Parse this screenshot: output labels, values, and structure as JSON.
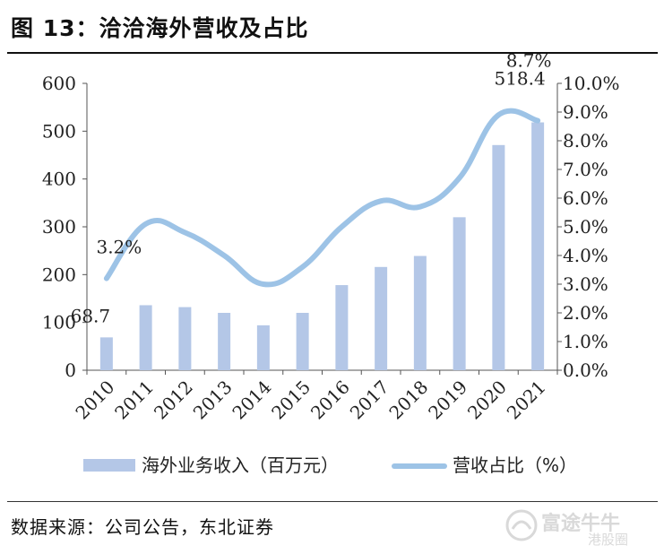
{
  "figure_title": "图 13：洽洽海外营收及占比",
  "source": "数据来源：公司公告，东北证券",
  "watermark": {
    "brand": "富途牛牛",
    "sub": "港股圈"
  },
  "colors": {
    "bar": "#b4c7e7",
    "line": "#9dc3e6",
    "axis": "#555555"
  },
  "chart_data": {
    "type": "bar+line",
    "categories": [
      "2010",
      "2011",
      "2012",
      "2013",
      "2014",
      "2015",
      "2016",
      "2017",
      "2018",
      "2019",
      "2020",
      "2021"
    ],
    "series": [
      {
        "name": "海外业务收入（百万元）",
        "type": "bar",
        "axis": "left",
        "values": [
          68.7,
          136,
          132,
          120,
          94,
          120,
          178,
          216,
          239,
          320,
          471,
          518.4
        ]
      },
      {
        "name": "营收占比（%）",
        "type": "line",
        "axis": "right",
        "values": [
          3.2,
          5.1,
          4.8,
          4.0,
          3.0,
          3.6,
          5.0,
          5.9,
          5.7,
          6.7,
          8.9,
          8.7
        ]
      }
    ],
    "left_axis": {
      "ylim": [
        0,
        600
      ],
      "ticks": [
        "0",
        "100",
        "200",
        "300",
        "400",
        "500",
        "600"
      ]
    },
    "right_axis": {
      "ylim": [
        0,
        10
      ],
      "ticks": [
        "0.0%",
        "1.0%",
        "2.0%",
        "3.0%",
        "4.0%",
        "5.0%",
        "6.0%",
        "7.0%",
        "8.0%",
        "9.0%",
        "10.0%"
      ]
    },
    "data_labels": [
      {
        "series": 0,
        "index": 0,
        "text": "68.7"
      },
      {
        "series": 0,
        "index": 11,
        "text": "518.4"
      },
      {
        "series": 1,
        "index": 0,
        "text": "3.2%"
      },
      {
        "series": 1,
        "index": 11,
        "text": "8.7%"
      }
    ],
    "legend_position": "bottom",
    "grid": false
  }
}
